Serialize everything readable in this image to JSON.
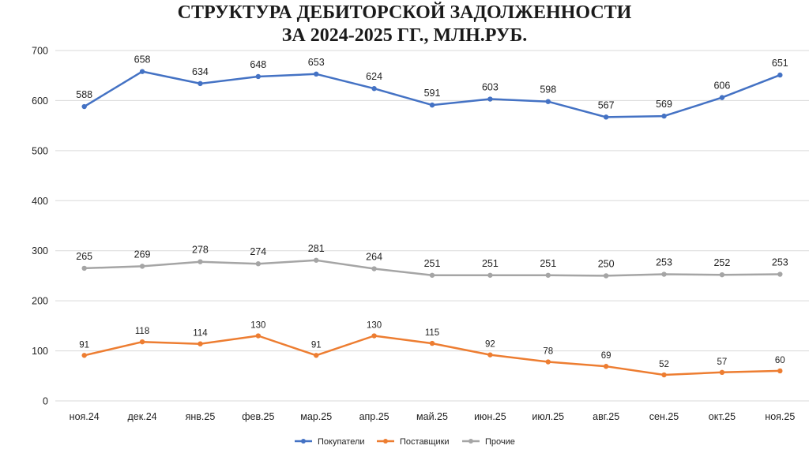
{
  "chart_data": {
    "type": "line",
    "title_line1": "СТРУКТУРА ДЕБИТОРСКОЙ ЗАДОЛЖЕННОСТИ",
    "title_line2": "ЗА 2024-2025 ГГ., МЛН.РУБ.",
    "categories": [
      "ноя.24",
      "дек.24",
      "янв.25",
      "фев.25",
      "мар.25",
      "апр.25",
      "май.25",
      "июн.25",
      "июл.25",
      "авг.25",
      "сен.25",
      "окт.25",
      "ноя.25"
    ],
    "ylim": [
      0,
      700
    ],
    "yticks": [
      "0",
      "100",
      "200",
      "300",
      "400",
      "500",
      "600",
      "700"
    ],
    "grid": true,
    "legend_position": "bottom",
    "series": [
      {
        "name": "Покупатели",
        "color": "#4472C4",
        "values": [
          588,
          658,
          634,
          648,
          653,
          624,
          591,
          603,
          598,
          567,
          569,
          606,
          651
        ]
      },
      {
        "name": "Поставщики",
        "color": "#ED7D31",
        "values": [
          91,
          118,
          114,
          130,
          91,
          130,
          115,
          92,
          78,
          69,
          52,
          57,
          60
        ]
      },
      {
        "name": "Прочие",
        "color": "#A5A5A5",
        "values": [
          265,
          269,
          278,
          274,
          281,
          264,
          251,
          251,
          251,
          250,
          253,
          252,
          253
        ]
      }
    ]
  }
}
